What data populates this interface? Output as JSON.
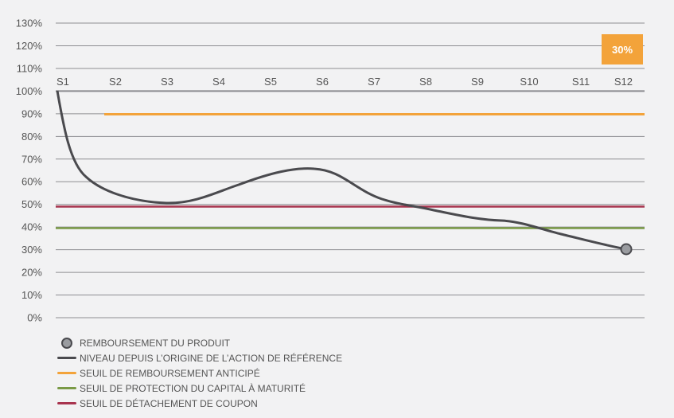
{
  "chart_data": {
    "type": "line",
    "title": "",
    "xlabel": "",
    "ylabel": "",
    "categories": [
      "S1",
      "S2",
      "S3",
      "S4",
      "S5",
      "S6",
      "S7",
      "S8",
      "S9",
      "S10",
      "S11",
      "S12"
    ],
    "y_ticks": [
      "0%",
      "10%",
      "20%",
      "30%",
      "40%",
      "50%",
      "60%",
      "70%",
      "80%",
      "90%",
      "100%",
      "110%",
      "120%",
      "130%"
    ],
    "ylim": [
      0,
      130
    ],
    "grid": true,
    "series": [
      {
        "name": "NIVEAU DEPUIS L’ORIGINE DE L’ACTION DE RÉFÉRENCE",
        "color": "#4a4a4e",
        "values": [
          100,
          55,
          51,
          56,
          63,
          66,
          55,
          50,
          45,
          43,
          37,
          30
        ]
      },
      {
        "name": "SEUIL DE REMBOURSEMENT ANTICIPÉ",
        "color": "#f3a33a",
        "values": [
          null,
          90,
          90,
          90,
          90,
          90,
          90,
          90,
          90,
          90,
          90,
          90
        ]
      },
      {
        "name": "SEUIL DE PROTECTION DU CAPITAL À MATURITÉ",
        "color": "#7a9a46",
        "values": [
          40,
          40,
          40,
          40,
          40,
          40,
          40,
          40,
          40,
          40,
          40,
          40
        ]
      },
      {
        "name": "SEUIL DE DÉTACHEMENT DE COUPON",
        "color": "#a8344e",
        "values": [
          50,
          50,
          50,
          50,
          50,
          50,
          50,
          50,
          50,
          50,
          50,
          50
        ]
      }
    ],
    "markers": [
      {
        "name": "REMBOURSEMENT DU PRODUIT",
        "x": "S12",
        "y": 30
      }
    ],
    "annotations": [
      {
        "text": "30%",
        "x": "S12",
        "color": "#f3a33a"
      }
    ],
    "legend_position": "bottom-left"
  },
  "badge": {
    "label": "30%"
  },
  "legend": {
    "items": [
      {
        "label": "REMBOURSEMENT DU PRODUIT"
      },
      {
        "label": "NIVEAU DEPUIS L’ORIGINE DE L’ACTION DE RÉFÉRENCE"
      },
      {
        "label": "SEUIL DE REMBOURSEMENT ANTICIPÉ"
      },
      {
        "label": "SEUIL DE PROTECTION DU CAPITAL À MATURITÉ"
      },
      {
        "label": "SEUIL DE DÉTACHEMENT DE COUPON"
      }
    ]
  }
}
